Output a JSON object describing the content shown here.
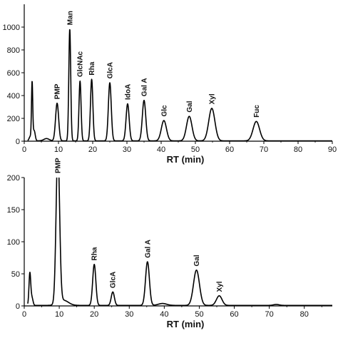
{
  "chart_data": [
    {
      "type": "line",
      "xlabel": "RT (min)",
      "ylabel": "",
      "xlim": [
        0,
        90
      ],
      "ylim": [
        0,
        1200
      ],
      "xticks": [
        0,
        10,
        20,
        30,
        40,
        50,
        60,
        70,
        80,
        90
      ],
      "yticks": [
        0,
        200,
        400,
        600,
        800,
        1000
      ],
      "grid": false,
      "baseline": 3,
      "peaks": [
        {
          "x": 1.8,
          "y": 40,
          "w": 0.35
        },
        {
          "x": 2.3,
          "y": 500,
          "w": 0.18
        },
        {
          "x": 2.9,
          "y": 90,
          "w": 0.3
        },
        {
          "x": 6.5,
          "y": 20,
          "w": 0.8
        },
        {
          "x": 9.6,
          "y": 330,
          "label": "PMP",
          "w": 0.45
        },
        {
          "x": 13.3,
          "y": 980,
          "label": "Man",
          "w": 0.28
        },
        {
          "x": 16.3,
          "y": 525,
          "label": "GlcNAc",
          "w": 0.3
        },
        {
          "x": 19.7,
          "y": 540,
          "label": "Rha",
          "w": 0.35
        },
        {
          "x": 25.0,
          "y": 510,
          "label": "GlcA",
          "w": 0.42
        },
        {
          "x": 30.2,
          "y": 325,
          "label": "IdoA",
          "w": 0.45
        },
        {
          "x": 35.0,
          "y": 355,
          "label": "Gal A",
          "w": 0.5
        },
        {
          "x": 40.8,
          "y": 178,
          "label": "Glc",
          "w": 0.75
        },
        {
          "x": 48.2,
          "y": 215,
          "label": "Gal",
          "w": 0.8
        },
        {
          "x": 54.8,
          "y": 285,
          "label": "Xyl",
          "w": 0.9
        },
        {
          "x": 67.8,
          "y": 170,
          "label": "Fuc",
          "w": 0.95
        }
      ]
    },
    {
      "type": "line",
      "xlabel": "RT (min)",
      "ylabel": "",
      "xlim": [
        0,
        88
      ],
      "ylim": [
        0,
        200
      ],
      "xticks": [
        0,
        10,
        20,
        30,
        40,
        50,
        60,
        70,
        80
      ],
      "yticks": [
        0,
        50,
        100,
        150,
        200
      ],
      "grid": false,
      "baseline": 0.8,
      "peaks": [
        {
          "x": 1.6,
          "y": 50,
          "w": 0.25
        },
        {
          "x": 2.2,
          "y": 12,
          "w": 0.3
        },
        {
          "x": 9.6,
          "y": 240,
          "label": "PMP",
          "w": 0.5
        },
        {
          "x": 11.2,
          "y": 8,
          "w": 1.4
        },
        {
          "x": 20.0,
          "y": 64,
          "label": "Rha",
          "w": 0.45
        },
        {
          "x": 25.3,
          "y": 21,
          "label": "GlcA",
          "w": 0.45
        },
        {
          "x": 35.2,
          "y": 68,
          "label": "Gal A",
          "w": 0.55
        },
        {
          "x": 39.5,
          "y": 3,
          "w": 1.2
        },
        {
          "x": 49.2,
          "y": 55,
          "label": "Gal",
          "w": 0.85
        },
        {
          "x": 55.7,
          "y": 15,
          "label": "Xyl",
          "w": 0.8
        },
        {
          "x": 72.0,
          "y": 1.5,
          "w": 0.8
        }
      ]
    }
  ]
}
